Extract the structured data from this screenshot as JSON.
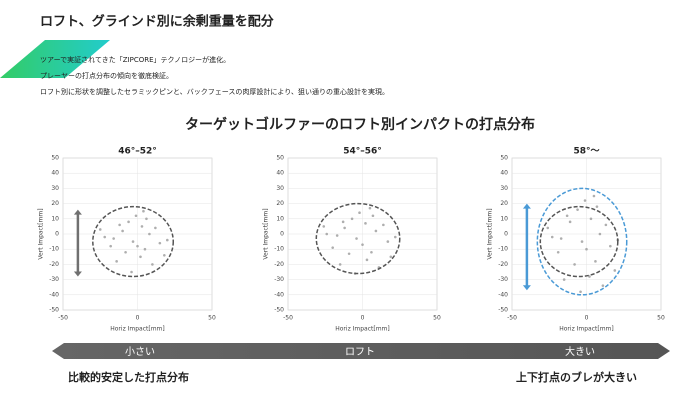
{
  "header": {
    "title": "ロフト、グラインド別に余剰重量を配分",
    "lines": [
      "ツアーで実証されてきた「ZIPCORE」テクノロジーが進化。",
      "プレーヤーの打点分布の傾向を徹底検証。",
      "ロフト別に形状を調整したセラミックピンと、バックフェースの肉厚設計により、狙い通りの重心設計を実現。"
    ]
  },
  "section_title": "ターゲットゴルファーのロフト別インパクトの打点分布",
  "chart_data": [
    {
      "type": "scatter",
      "title": "46°–52°",
      "xlabel": "Horiz Impact[mm]",
      "ylabel": "Vert Impact[mm]",
      "xlim": [
        -50,
        50
      ],
      "ylim": [
        -50,
        50
      ],
      "xticks": [
        -50,
        0,
        50
      ],
      "yticks": [
        -50,
        -40,
        -30,
        -20,
        -10,
        0,
        10,
        20,
        30,
        40,
        50
      ],
      "grid": true,
      "series": [
        {
          "color": "#9a9a9a",
          "x": [
            -3,
            -10,
            5,
            12,
            -18,
            -6,
            2,
            -22,
            15,
            -1,
            8,
            -14,
            20,
            -8,
            3,
            -25,
            10,
            -4,
            6,
            -12,
            0,
            18,
            -16,
            4
          ],
          "values": [
            -5,
            2,
            -10,
            4,
            -8,
            8,
            -15,
            -2,
            -6,
            12,
            0,
            -18,
            -4,
            -12,
            5,
            3,
            -20,
            -25,
            10,
            6,
            -8,
            -14,
            -3,
            15
          ]
        }
      ],
      "ellipses": [
        {
          "cx": -3,
          "cy": -5,
          "rx": 27,
          "ry": 23,
          "color": "#555555"
        }
      ],
      "arrow": {
        "x": -40,
        "from": 16,
        "to": -28,
        "color": "#707070"
      }
    },
    {
      "type": "scatter",
      "title": "54°–56°",
      "xlabel": "Horiz Impact[mm]",
      "ylabel": "Vert Impact[mm]",
      "xlim": [
        -50,
        50
      ],
      "ylim": [
        -50,
        50
      ],
      "xticks": [
        -50,
        0,
        50
      ],
      "yticks": [
        -50,
        -40,
        -30,
        -20,
        -10,
        0,
        10,
        20,
        30,
        40,
        50
      ],
      "grid": true,
      "series": [
        {
          "color": "#9a9a9a",
          "x": [
            -4,
            -12,
            6,
            14,
            -20,
            -7,
            3,
            -24,
            17,
            -2,
            9,
            -15,
            22,
            -9,
            2,
            -26,
            11,
            -5,
            7,
            -13,
            0,
            19,
            -17,
            5
          ],
          "values": [
            -3,
            4,
            -12,
            6,
            -9,
            10,
            -17,
            0,
            -5,
            14,
            2,
            -20,
            -2,
            -13,
            7,
            5,
            -22,
            -26,
            12,
            8,
            -7,
            -15,
            -1,
            17
          ]
        }
      ],
      "ellipses": [
        {
          "cx": -3,
          "cy": -3,
          "rx": 28,
          "ry": 23,
          "color": "#555555"
        }
      ]
    },
    {
      "type": "scatter",
      "title": "58°〜",
      "xlabel": "Horiz Impact[mm]",
      "ylabel": "Vert Impact[mm]",
      "xlim": [
        -50,
        50
      ],
      "ylim": [
        -50,
        50
      ],
      "xticks": [
        -50,
        0,
        50
      ],
      "yticks": [
        -50,
        -40,
        -30,
        -20,
        -10,
        0,
        10,
        20,
        30,
        40,
        50
      ],
      "grid": true,
      "series": [
        {
          "color": "#9a9a9a",
          "x": [
            -3,
            -11,
            6,
            13,
            -19,
            -6,
            2,
            -23,
            16,
            -1,
            9,
            -15,
            21,
            -8,
            3,
            -26,
            11,
            -4,
            7,
            -13,
            0,
            19,
            -17,
            5
          ],
          "values": [
            -5,
            8,
            -18,
            6,
            -12,
            16,
            -28,
            -2,
            -8,
            22,
            0,
            -30,
            -4,
            -20,
            10,
            4,
            -34,
            -38,
            18,
            12,
            -10,
            -24,
            -3,
            25
          ]
        }
      ],
      "ellipses": [
        {
          "cx": -5,
          "cy": -5,
          "rx": 26,
          "ry": 23,
          "color": "#555555"
        },
        {
          "cx": -3,
          "cy": -5,
          "rx": 30,
          "ry": 35,
          "color": "#4a9ad6"
        }
      ],
      "arrow": {
        "x": -40,
        "from": 20,
        "to": -37,
        "color": "#4a9ad6"
      }
    }
  ],
  "band": {
    "left": "小さい",
    "center": "ロフト",
    "right": "大きい"
  },
  "notes": {
    "left": "比較的安定した打点分布",
    "right": "上下打点のブレが大きい"
  }
}
